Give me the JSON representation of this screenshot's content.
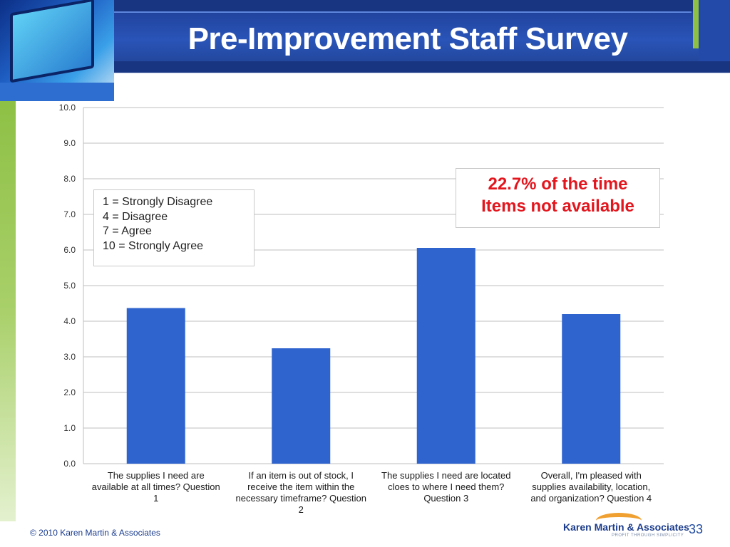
{
  "slide": {
    "title": "Pre-Improvement Staff Survey",
    "footer_copyright": "© 2010 Karen Martin & Associates",
    "page_number": "33",
    "logo_name": "Karen Martin & Associates",
    "logo_tagline": "PROFIT THROUGH SIMPLICITY"
  },
  "legend_box": {
    "lines": [
      "1 = Strongly Disagree",
      "4 = Disagree",
      "7 = Agree",
      "10 = Strongly Agree"
    ]
  },
  "callout": {
    "lines": [
      "22.7% of the time",
      "Items not available"
    ],
    "color": "#e3151d"
  },
  "colors": {
    "bar": "#2f64cf",
    "header_band": "#2a54b8",
    "accent_green": "#8ec045"
  },
  "chart_data": {
    "type": "bar",
    "categories": [
      "The supplies I need are available at all times? Question 1",
      "If an item is out of stock, I receive the item within the necessary timeframe? Question 2",
      "The supplies I need are located cloes to where I need them? Question 3",
      "Overall, I'm pleased with supplies availability, location, and organization? Question 4"
    ],
    "category_lines": [
      [
        "The supplies I need are",
        "available at all times? Question",
        "1"
      ],
      [
        "If an item is out of stock, I",
        "receive the item within the",
        "necessary timeframe? Question",
        "2"
      ],
      [
        "The supplies I need are located",
        "cloes to where I need them?",
        "Question 3"
      ],
      [
        "Overall, I'm pleased with",
        "supplies availability, location,",
        "and organization? Question 4"
      ]
    ],
    "values": [
      4.37,
      3.24,
      6.06,
      4.2
    ],
    "ylim": [
      0,
      10
    ],
    "yticks": [
      "0.0",
      "1.0",
      "2.0",
      "3.0",
      "4.0",
      "5.0",
      "6.0",
      "7.0",
      "8.0",
      "9.0",
      "10.0"
    ],
    "grid": true,
    "xlabel": "",
    "ylabel": "",
    "title": ""
  }
}
